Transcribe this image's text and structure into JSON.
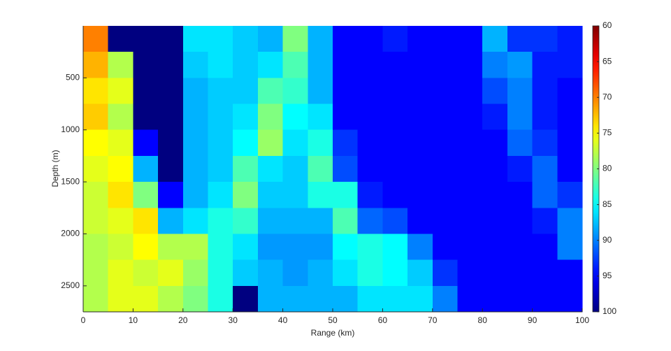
{
  "chart_data": {
    "type": "heatmap",
    "xlabel": "Range (km)",
    "ylabel": "Depth (m)",
    "xlim": [
      0,
      100
    ],
    "xticks": [
      0,
      10,
      20,
      30,
      40,
      50,
      60,
      70,
      80,
      90,
      100
    ],
    "ylim": [
      0,
      2750
    ],
    "yticks": [
      500,
      1000,
      1500,
      2000,
      2500
    ],
    "y_reversed": true,
    "colormap": "jet_r",
    "clim": [
      60,
      100
    ],
    "cticks": [
      60,
      65,
      70,
      75,
      80,
      85,
      90,
      95,
      100
    ],
    "x_edges": [
      0,
      5,
      10,
      15,
      20,
      25,
      30,
      35,
      40,
      45,
      50,
      55,
      60,
      65,
      70,
      75,
      80,
      85,
      90,
      95,
      100
    ],
    "y_edges": [
      0,
      250,
      500,
      750,
      1000,
      1250,
      1500,
      1750,
      2000,
      2250,
      2500,
      2750
    ],
    "z": [
      [
        70,
        100,
        100,
        100,
        86,
        86,
        87,
        88,
        80,
        88,
        95,
        95,
        94,
        95,
        95,
        95,
        88,
        93,
        93,
        94
      ],
      [
        72,
        78,
        100,
        100,
        87,
        86,
        87,
        86,
        82,
        88,
        95,
        95,
        95,
        95,
        95,
        95,
        90,
        89,
        94,
        94
      ],
      [
        74,
        76,
        100,
        100,
        88,
        87,
        87,
        82,
        83,
        88,
        95,
        95,
        95,
        95,
        95,
        95,
        92,
        90,
        94,
        95
      ],
      [
        73,
        78,
        100,
        100,
        88,
        87,
        86,
        80,
        85,
        86,
        95,
        95,
        95,
        95,
        95,
        95,
        94,
        90,
        94,
        95
      ],
      [
        75,
        76,
        95,
        100,
        88,
        87,
        85,
        79,
        86,
        84,
        93,
        95,
        95,
        95,
        95,
        95,
        95,
        91,
        93,
        95
      ],
      [
        76,
        75,
        88,
        100,
        88,
        87,
        82,
        86,
        87,
        82,
        92,
        95,
        95,
        95,
        95,
        95,
        95,
        94,
        91,
        95
      ],
      [
        77,
        74,
        80,
        95,
        88,
        86,
        80,
        87,
        87,
        84,
        84,
        94,
        95,
        95,
        95,
        95,
        95,
        95,
        91,
        93
      ],
      [
        77,
        76,
        74,
        88,
        86,
        84,
        83,
        88,
        88,
        88,
        82,
        91,
        92,
        95,
        95,
        95,
        95,
        95,
        94,
        90
      ],
      [
        78,
        77,
        75,
        78,
        78,
        84,
        86,
        89,
        89,
        89,
        85,
        84,
        85,
        90,
        95,
        95,
        95,
        95,
        95,
        90
      ],
      [
        78,
        76,
        77,
        76,
        79,
        84,
        87,
        88,
        89,
        88,
        86,
        84,
        85,
        87,
        93,
        95,
        95,
        95,
        95,
        95
      ],
      [
        78,
        76,
        76,
        78,
        80,
        84,
        100,
        88,
        88,
        88,
        88,
        86,
        86,
        86,
        90,
        95,
        95,
        95,
        95,
        95
      ]
    ]
  }
}
